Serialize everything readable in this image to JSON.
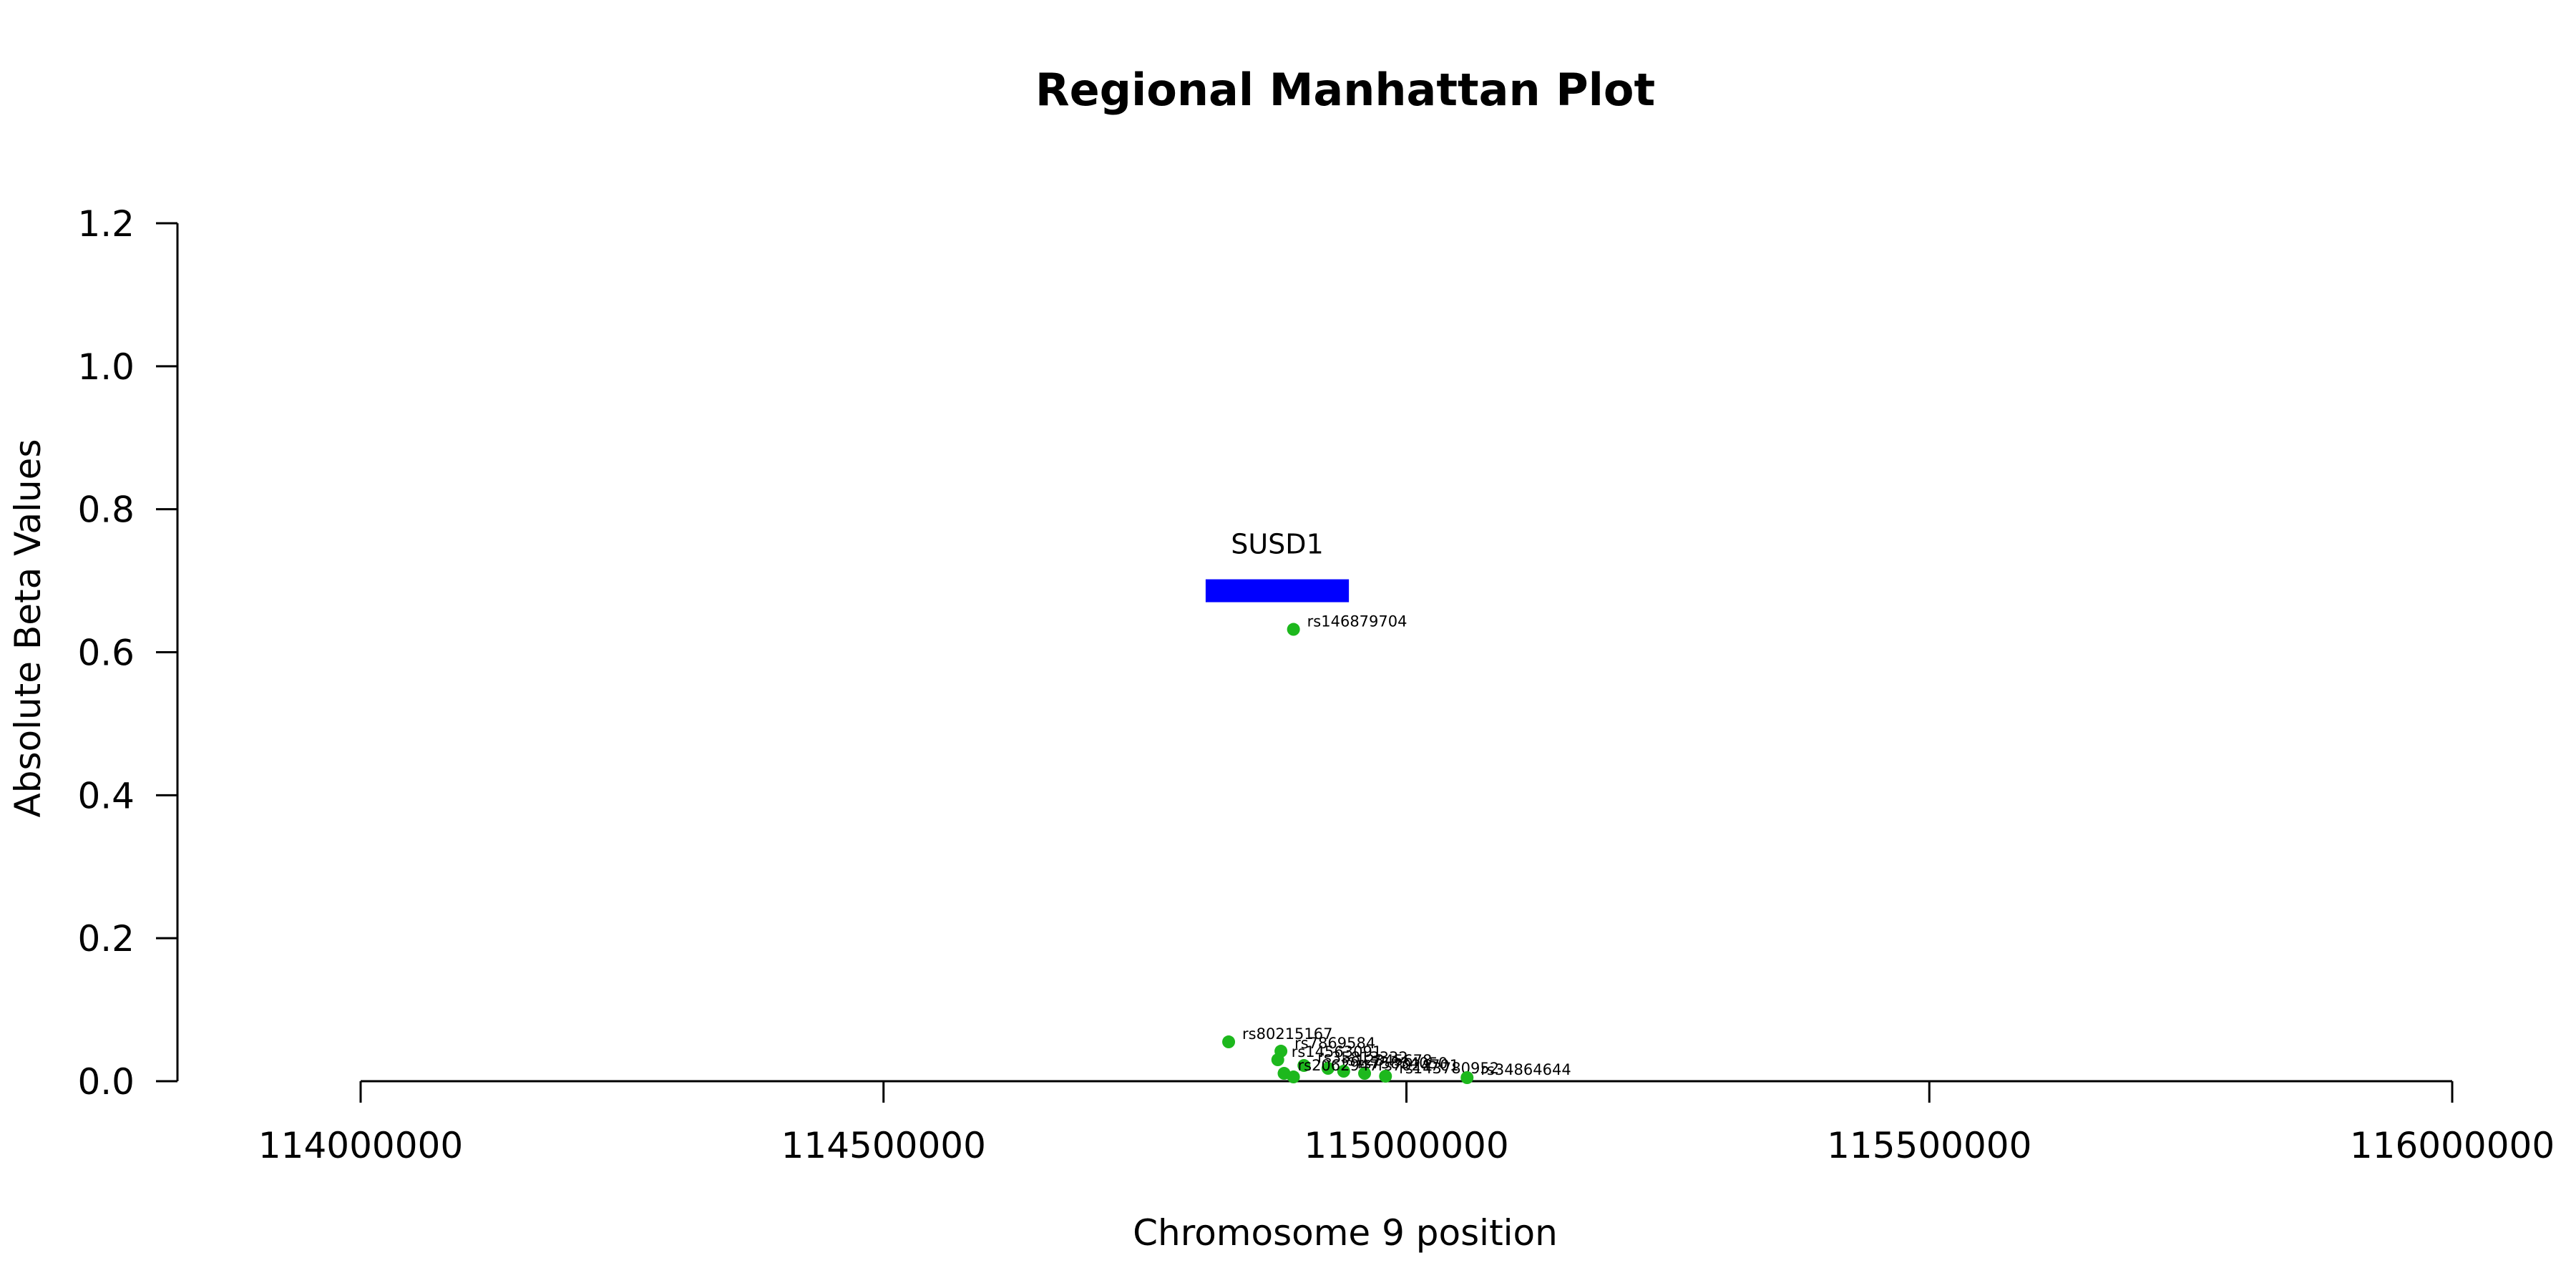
{
  "chart_data": {
    "type": "scatter",
    "title": "Regional Manhattan Plot",
    "xlabel": "Chromosome 9 position",
    "ylabel": "Absolute Beta Values",
    "xlim": [
      114000000,
      116000000
    ],
    "ylim": [
      0,
      1.2
    ],
    "x_ticks": [
      "114000000",
      "114500000",
      "115000000",
      "115500000",
      "116000000"
    ],
    "y_ticks": [
      "0.0",
      "0.2",
      "0.4",
      "0.6",
      "0.8",
      "1.0",
      "1.2"
    ],
    "point_color": "#1db81d",
    "gene": {
      "name": "SUSD1",
      "start": 114808000,
      "end": 114945000,
      "y": 0.686,
      "color": "#0000ff"
    },
    "points": [
      {
        "x": 114892000,
        "y": 0.632,
        "label": "rs146879704"
      },
      {
        "x": 114830000,
        "y": 0.055,
        "label": "rs80215167"
      },
      {
        "x": 114880000,
        "y": 0.042,
        "label": "rs7869584"
      },
      {
        "x": 114877000,
        "y": 0.03,
        "label": "rs14563091"
      },
      {
        "x": 114902000,
        "y": 0.022,
        "label": "rs35813332"
      },
      {
        "x": 114925000,
        "y": 0.018,
        "label": "rs12345678"
      },
      {
        "x": 114940000,
        "y": 0.014,
        "label": "rs75834050"
      },
      {
        "x": 114960000,
        "y": 0.011,
        "label": "rs7024701"
      },
      {
        "x": 114883000,
        "y": 0.011,
        "label": "rs2062947"
      },
      {
        "x": 114892000,
        "y": 0.006,
        "label": ""
      },
      {
        "x": 114980000,
        "y": 0.007,
        "label": "rs143780952"
      },
      {
        "x": 115058000,
        "y": 0.005,
        "label": "rs34864644"
      }
    ]
  }
}
